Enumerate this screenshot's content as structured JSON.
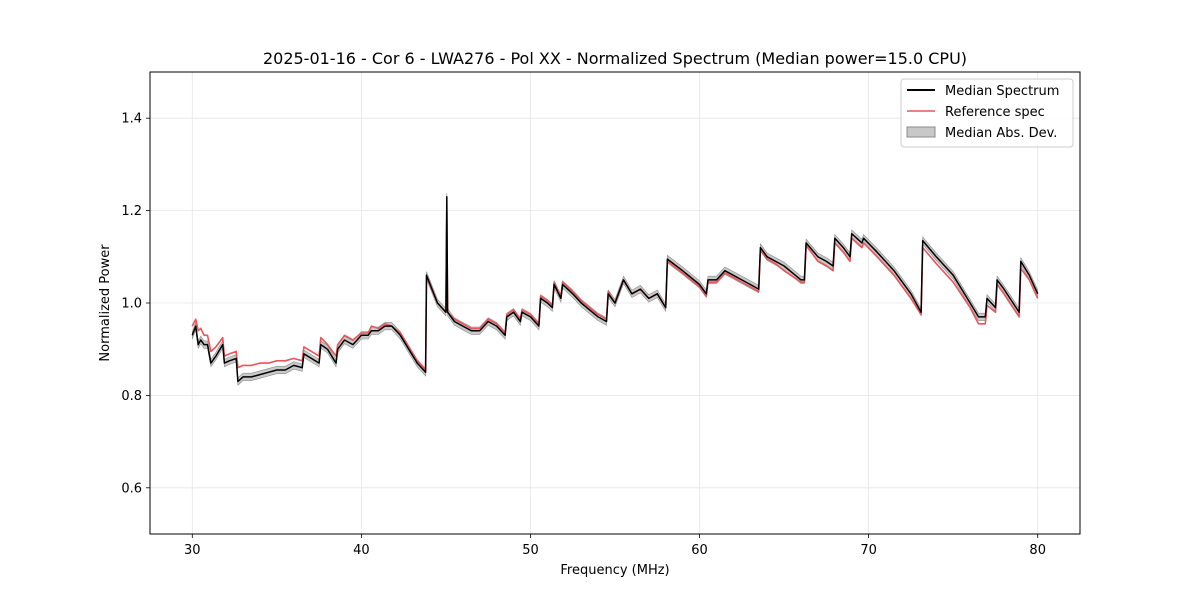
{
  "chart_data": {
    "type": "line",
    "title": "2025-01-16 - Cor 6 - LWA276 - Pol XX - Normalized Spectrum (Median power=15.0 CPU)",
    "xlabel": "Frequency (MHz)",
    "ylabel": "Normalized Power",
    "xlim": [
      27.5,
      82.5
    ],
    "ylim": [
      0.5,
      1.5
    ],
    "xticks": [
      30,
      40,
      50,
      60,
      70,
      80
    ],
    "yticks": [
      0.6,
      0.8,
      1.0,
      1.2,
      1.4
    ],
    "xtick_labels": [
      "30",
      "40",
      "50",
      "60",
      "70",
      "80"
    ],
    "ytick_labels": [
      "0.6",
      "0.8",
      "1.0",
      "1.2",
      "1.4"
    ],
    "grid": true,
    "legend_position": "top-right",
    "series": [
      {
        "name": "Median Spectrum",
        "color": "#000000",
        "x": [
          30.0,
          30.2,
          30.35,
          30.5,
          30.7,
          30.9,
          31.1,
          31.4,
          31.8,
          31.9,
          32.2,
          32.6,
          32.7,
          33.0,
          33.5,
          34.0,
          34.5,
          35.0,
          35.5,
          36.0,
          36.5,
          36.6,
          37.5,
          37.6,
          38.0,
          38.5,
          38.6,
          39.0,
          39.5,
          40.0,
          40.4,
          40.6,
          41.0,
          41.4,
          41.8,
          42.3,
          42.8,
          43.3,
          43.8,
          43.85,
          44.5,
          45.0,
          45.05,
          45.1,
          45.5,
          46.0,
          46.5,
          47.0,
          47.5,
          48.0,
          48.5,
          48.6,
          49.0,
          49.4,
          49.5,
          50.0,
          50.5,
          50.6,
          51.0,
          51.3,
          51.4,
          51.8,
          51.9,
          52.5,
          53.0,
          53.5,
          54.0,
          54.5,
          54.6,
          55.0,
          55.5,
          56.0,
          56.5,
          57.0,
          57.5,
          58.0,
          58.1,
          59.0,
          60.0,
          60.4,
          60.5,
          61.0,
          61.5,
          62.0,
          62.5,
          63.0,
          63.5,
          63.6,
          64.0,
          64.5,
          65.0,
          66.0,
          66.2,
          66.3,
          67.0,
          67.5,
          67.9,
          68.0,
          68.5,
          68.9,
          69.0,
          69.6,
          69.7,
          70.5,
          71.5,
          72.5,
          73.1,
          73.2,
          74.0,
          75.0,
          76.0,
          76.5,
          76.9,
          77.0,
          77.5,
          77.6,
          78.0,
          78.9,
          79.0,
          79.5,
          80.0
        ],
        "values": [
          0.93,
          0.95,
          0.91,
          0.92,
          0.91,
          0.91,
          0.87,
          0.885,
          0.91,
          0.87,
          0.875,
          0.88,
          0.83,
          0.84,
          0.84,
          0.845,
          0.85,
          0.855,
          0.855,
          0.865,
          0.86,
          0.89,
          0.87,
          0.91,
          0.9,
          0.87,
          0.9,
          0.92,
          0.91,
          0.93,
          0.93,
          0.94,
          0.94,
          0.95,
          0.95,
          0.93,
          0.9,
          0.87,
          0.85,
          1.06,
          1.0,
          0.98,
          1.23,
          0.98,
          0.96,
          0.95,
          0.94,
          0.94,
          0.96,
          0.95,
          0.93,
          0.97,
          0.98,
          0.96,
          0.98,
          0.97,
          0.95,
          1.01,
          1.0,
          0.99,
          1.04,
          1.01,
          1.04,
          1.02,
          1.0,
          0.985,
          0.97,
          0.96,
          1.02,
          1.0,
          1.05,
          1.02,
          1.03,
          1.01,
          1.02,
          0.99,
          1.095,
          1.07,
          1.04,
          1.02,
          1.05,
          1.05,
          1.07,
          1.06,
          1.05,
          1.04,
          1.03,
          1.12,
          1.1,
          1.09,
          1.08,
          1.05,
          1.05,
          1.13,
          1.1,
          1.09,
          1.08,
          1.14,
          1.12,
          1.1,
          1.15,
          1.13,
          1.14,
          1.11,
          1.07,
          1.02,
          0.98,
          1.135,
          1.1,
          1.06,
          1.0,
          0.97,
          0.97,
          1.01,
          0.99,
          1.05,
          1.03,
          0.98,
          1.09,
          1.06,
          1.02
        ]
      },
      {
        "name": "Reference spec",
        "color": "#e8555a",
        "x": [
          30.0,
          30.2,
          30.35,
          30.5,
          30.7,
          30.9,
          31.1,
          31.4,
          31.8,
          31.9,
          32.2,
          32.6,
          32.7,
          33.0,
          33.5,
          34.0,
          34.5,
          35.0,
          35.5,
          36.0,
          36.5,
          36.6,
          37.5,
          37.6,
          38.0,
          38.5,
          38.6,
          39.0,
          39.5,
          40.0,
          40.4,
          40.6,
          41.0,
          41.4,
          41.8,
          42.3,
          42.8,
          43.3,
          43.8,
          43.85,
          44.5,
          45.0,
          45.05,
          45.1,
          45.5,
          46.0,
          46.5,
          47.0,
          47.5,
          48.0,
          48.5,
          48.6,
          49.0,
          49.4,
          49.5,
          50.0,
          50.5,
          50.6,
          51.0,
          51.3,
          51.4,
          51.8,
          51.9,
          52.5,
          53.0,
          53.5,
          54.0,
          54.5,
          54.6,
          55.0,
          55.5,
          56.0,
          56.5,
          57.0,
          57.5,
          58.0,
          58.1,
          59.0,
          60.0,
          60.4,
          60.5,
          61.0,
          61.5,
          62.0,
          62.5,
          63.0,
          63.5,
          63.6,
          64.0,
          64.5,
          65.0,
          66.0,
          66.2,
          66.3,
          67.0,
          67.5,
          67.9,
          68.0,
          68.5,
          68.9,
          69.0,
          69.6,
          69.7,
          70.5,
          71.5,
          72.5,
          73.1,
          73.2,
          74.0,
          75.0,
          76.0,
          76.5,
          76.9,
          77.0,
          77.5,
          77.6,
          78.0,
          78.9,
          79.0,
          79.5,
          80.0
        ],
        "values": [
          0.95,
          0.965,
          0.94,
          0.945,
          0.93,
          0.93,
          0.895,
          0.905,
          0.925,
          0.885,
          0.89,
          0.895,
          0.86,
          0.865,
          0.865,
          0.87,
          0.87,
          0.875,
          0.875,
          0.88,
          0.875,
          0.905,
          0.885,
          0.925,
          0.91,
          0.885,
          0.91,
          0.93,
          0.92,
          0.935,
          0.935,
          0.95,
          0.945,
          0.955,
          0.95,
          0.935,
          0.905,
          0.875,
          0.855,
          1.055,
          1.0,
          0.98,
          1.2,
          0.98,
          0.965,
          0.955,
          0.945,
          0.945,
          0.965,
          0.955,
          0.935,
          0.975,
          0.985,
          0.965,
          0.985,
          0.975,
          0.955,
          1.015,
          1.005,
          0.995,
          1.045,
          1.015,
          1.045,
          1.025,
          1.005,
          0.99,
          0.975,
          0.965,
          1.025,
          1.0,
          1.05,
          1.02,
          1.03,
          1.01,
          1.02,
          0.99,
          1.09,
          1.065,
          1.035,
          1.015,
          1.045,
          1.045,
          1.065,
          1.055,
          1.045,
          1.035,
          1.025,
          1.115,
          1.095,
          1.085,
          1.07,
          1.045,
          1.045,
          1.125,
          1.09,
          1.08,
          1.07,
          1.13,
          1.11,
          1.09,
          1.14,
          1.12,
          1.13,
          1.1,
          1.06,
          1.01,
          0.975,
          1.12,
          1.085,
          1.045,
          0.99,
          0.955,
          0.955,
          0.995,
          0.98,
          1.04,
          1.02,
          0.97,
          1.075,
          1.05,
          1.01
        ]
      }
    ],
    "band": {
      "name": "Median Abs. Dev.",
      "color": "#c8c8c8",
      "stroke": "#8c8c8c",
      "halfwidth": 0.008
    }
  }
}
